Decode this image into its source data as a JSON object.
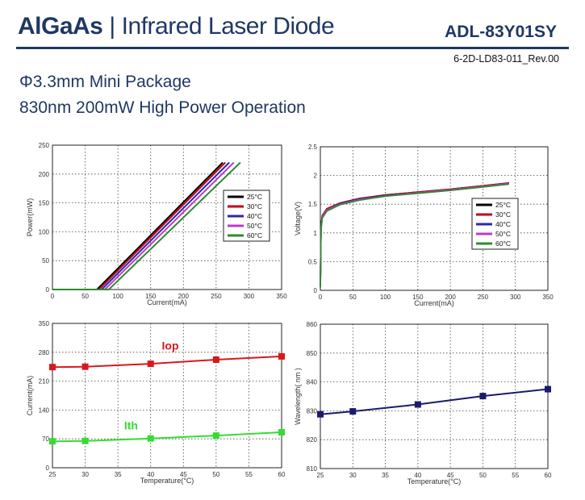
{
  "header": {
    "material": "AlGaAs",
    "separator": "|",
    "product": "Infrared Laser Diode",
    "part_number": "ADL-83Y01SY",
    "doc_id": "6-2D-LD83-011_Rev.00"
  },
  "subtitle": {
    "line1": "Φ3.3mm Mini Package",
    "line2": "830nm 200mW High Power Operation"
  },
  "colors": {
    "c25": "#000000",
    "c30": "#c0001e",
    "c40": "#2a2aa8",
    "c50": "#b93cc8",
    "c60": "#2e8b2e",
    "iop": "#d7191c",
    "ith": "#33dd33",
    "wave": "#1a1a6e"
  },
  "chart_data": [
    {
      "id": "pi",
      "type": "line",
      "xlabel": "Current(mA)",
      "ylabel": "Power(mW)",
      "xlim": [
        0,
        350
      ],
      "ylim": [
        0,
        250
      ],
      "xticks": [
        0,
        50,
        100,
        150,
        200,
        250,
        300,
        350
      ],
      "yticks": [
        0,
        50,
        100,
        150,
        200,
        250
      ],
      "legend": "right-middle",
      "series": [
        {
          "name": "25°C",
          "color": "#000000",
          "points": [
            [
              0,
              0
            ],
            [
              68,
              0
            ],
            [
              260,
              220
            ]
          ]
        },
        {
          "name": "30°C",
          "color": "#c0001e",
          "points": [
            [
              0,
              0
            ],
            [
              71,
              0
            ],
            [
              264,
              220
            ]
          ]
        },
        {
          "name": "40°C",
          "color": "#2a2aa8",
          "points": [
            [
              0,
              0
            ],
            [
              75,
              0
            ],
            [
              270,
              220
            ]
          ]
        },
        {
          "name": "50°C",
          "color": "#b93cc8",
          "points": [
            [
              0,
              0
            ],
            [
              80,
              0
            ],
            [
              277,
              220
            ]
          ]
        },
        {
          "name": "60°C",
          "color": "#2e8b2e",
          "points": [
            [
              0,
              0
            ],
            [
              86,
              0
            ],
            [
              287,
              220
            ]
          ]
        }
      ]
    },
    {
      "id": "vi",
      "type": "line",
      "xlabel": "Current(mA)",
      "ylabel": "Voltage(V)",
      "xlim": [
        0,
        350
      ],
      "ylim": [
        0,
        2.5
      ],
      "xticks": [
        0,
        50,
        100,
        150,
        200,
        250,
        300,
        350
      ],
      "yticks": [
        0,
        0.5,
        1,
        1.5,
        2,
        2.5
      ],
      "legend": "right-middle",
      "series": [
        {
          "name": "25°C",
          "color": "#000000",
          "points": [
            [
              0,
              0.05
            ],
            [
              1,
              1.1
            ],
            [
              3,
              1.3
            ],
            [
              10,
              1.42
            ],
            [
              30,
              1.52
            ],
            [
              60,
              1.6
            ],
            [
              100,
              1.66
            ],
            [
              150,
              1.71
            ],
            [
              200,
              1.76
            ],
            [
              250,
              1.82
            ],
            [
              290,
              1.87
            ]
          ]
        },
        {
          "name": "30°C",
          "color": "#c0001e",
          "points": [
            [
              0,
              0.05
            ],
            [
              1,
              1.1
            ],
            [
              3,
              1.3
            ],
            [
              10,
              1.42
            ],
            [
              30,
              1.52
            ],
            [
              60,
              1.6
            ],
            [
              100,
              1.66
            ],
            [
              150,
              1.71
            ],
            [
              200,
              1.76
            ],
            [
              250,
              1.82
            ],
            [
              290,
              1.87
            ]
          ]
        },
        {
          "name": "40°C",
          "color": "#2a2aa8",
          "points": [
            [
              0,
              0.05
            ],
            [
              1,
              1.08
            ],
            [
              3,
              1.28
            ],
            [
              10,
              1.4
            ],
            [
              30,
              1.51
            ],
            [
              60,
              1.59
            ],
            [
              100,
              1.65
            ],
            [
              150,
              1.7
            ],
            [
              200,
              1.75
            ],
            [
              250,
              1.81
            ],
            [
              290,
              1.86
            ]
          ]
        },
        {
          "name": "50°C",
          "color": "#b93cc8",
          "points": [
            [
              0,
              0.05
            ],
            [
              1,
              1.08
            ],
            [
              3,
              1.28
            ],
            [
              10,
              1.4
            ],
            [
              30,
              1.5
            ],
            [
              60,
              1.58
            ],
            [
              100,
              1.64
            ],
            [
              150,
              1.7
            ],
            [
              200,
              1.75
            ],
            [
              250,
              1.81
            ],
            [
              290,
              1.86
            ]
          ]
        },
        {
          "name": "60°C",
          "color": "#2e8b2e",
          "points": [
            [
              0,
              0.05
            ],
            [
              1,
              1.06
            ],
            [
              3,
              1.26
            ],
            [
              10,
              1.38
            ],
            [
              30,
              1.49
            ],
            [
              60,
              1.57
            ],
            [
              100,
              1.64
            ],
            [
              150,
              1.69
            ],
            [
              200,
              1.74
            ],
            [
              250,
              1.8
            ],
            [
              290,
              1.85
            ]
          ]
        }
      ]
    },
    {
      "id": "it",
      "type": "line",
      "xlabel": "Temperature(°C)",
      "ylabel": "Current(mA)",
      "xlim": [
        25,
        60
      ],
      "ylim": [
        0,
        350
      ],
      "xticks": [
        25,
        30,
        35,
        40,
        45,
        50,
        55,
        60
      ],
      "yticks": [
        0,
        70,
        140,
        210,
        280,
        350
      ],
      "series": [
        {
          "name": "Iop",
          "color": "#d7191c",
          "label_x": 43,
          "label_y": 286,
          "x": [
            25,
            30,
            40,
            50,
            60
          ],
          "y": [
            244,
            245,
            252,
            262,
            270
          ]
        },
        {
          "name": "Ith",
          "color": "#33dd33",
          "label_x": 37,
          "label_y": 93,
          "x": [
            25,
            30,
            40,
            50,
            60
          ],
          "y": [
            64,
            65,
            71,
            78,
            86
          ]
        }
      ]
    },
    {
      "id": "wt",
      "type": "line",
      "xlabel": "Temperature(°C)",
      "ylabel": "Wavelength( nm )",
      "xlim": [
        25,
        60
      ],
      "ylim": [
        810,
        860
      ],
      "xticks": [
        25,
        30,
        35,
        40,
        45,
        50,
        55,
        60
      ],
      "yticks": [
        810,
        820,
        830,
        840,
        850,
        860
      ],
      "series": [
        {
          "name": "Wavelength",
          "color": "#1a1a6e",
          "x": [
            25,
            30,
            40,
            50,
            60
          ],
          "y": [
            828.8,
            829.8,
            832.2,
            835.1,
            837.5
          ]
        }
      ]
    }
  ]
}
